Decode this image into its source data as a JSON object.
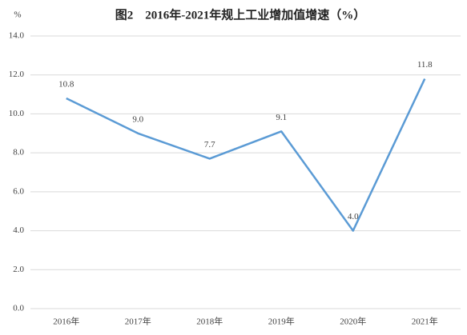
{
  "chart_data": {
    "type": "line",
    "title": "图2　2016年-2021年规上工业增加值增速（%）",
    "y_label": "%",
    "categories": [
      "2016年",
      "2017年",
      "2018年",
      "2019年",
      "2020年",
      "2021年"
    ],
    "series": [
      {
        "name": "规上工业增加值增速",
        "color": "#5b9bd5",
        "values": [
          10.8,
          9.0,
          7.7,
          9.1,
          4.0,
          11.8
        ],
        "value_labels": [
          "10.8",
          "9.0",
          "7.7",
          "9.1",
          "4.0",
          "11.8"
        ]
      }
    ],
    "ylim": [
      0,
      14
    ],
    "yticks": [
      {
        "value": 0,
        "label": "0.0"
      },
      {
        "value": 2,
        "label": "2.0"
      },
      {
        "value": 4,
        "label": "4.0"
      },
      {
        "value": 6,
        "label": "6.0"
      },
      {
        "value": 8,
        "label": "8.0"
      },
      {
        "value": 10,
        "label": "10.0"
      },
      {
        "value": 12,
        "label": "12.0"
      },
      {
        "value": 14,
        "label": "14.0"
      }
    ],
    "grid": true
  }
}
